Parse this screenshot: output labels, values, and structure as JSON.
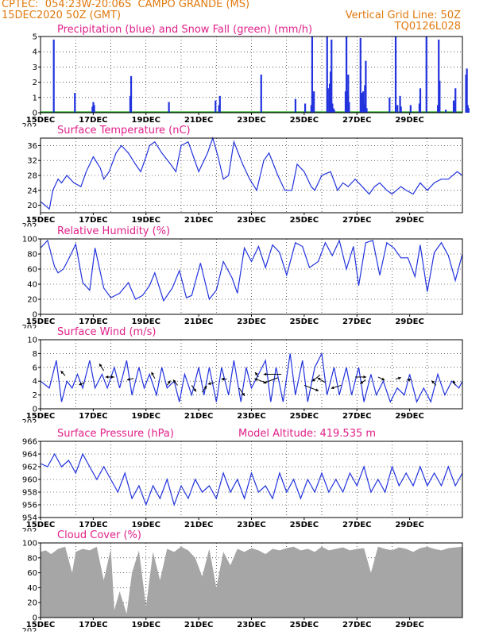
{
  "header": {
    "line1_left": "CPTEC:  054:23W-20:06S  CAMPO GRANDE (MS)",
    "line2_left": "15DEC2020 50Z (GMT)",
    "line2_right": "Vertical Grid Line: 50Z",
    "line3_right": "TQ0126L028",
    "model_altitude": "Model Altitude: 419.535 m"
  },
  "x_axis": {
    "labels": [
      "15DEC",
      "17DEC",
      "19DEC",
      "21DEC",
      "23DEC",
      "25DEC",
      "27DEC",
      "29DEC"
    ],
    "year_fragment": "202"
  },
  "colors": {
    "title": "#e0208a",
    "header": "#e07a10",
    "line": "#2233dd",
    "bar": "#2233dd",
    "snow": "#10a010",
    "cloud": "#a6a6a6"
  },
  "chart_data": [
    {
      "type": "bar",
      "title": "Precipitation (blue) and Snow Fall (green) (mm/h)",
      "ylim": [
        0,
        5
      ],
      "yticks": [
        "0",
        "1",
        "2",
        "3",
        "4",
        "5"
      ],
      "x": [
        0.75,
        1.95,
        2.95,
        3.0,
        3.05,
        5.1,
        5.15,
        7.3,
        9.95,
        10.15,
        10.2,
        12.55,
        14.5,
        15.05,
        15.4,
        15.45,
        15.5,
        15.55,
        16.3,
        16.35,
        16.45,
        16.5,
        16.55,
        16.6,
        16.65,
        16.7,
        17.35,
        17.4,
        17.45,
        17.5,
        17.55,
        18.2,
        18.25,
        18.3,
        18.35,
        18.4,
        18.45,
        18.5,
        18.55,
        19.85,
        20.2,
        20.3,
        20.45,
        20.5,
        21.05,
        21.55,
        21.6,
        21.95,
        22.6,
        22.65,
        22.7,
        23.05,
        23.5,
        23.55,
        23.6,
        24.2,
        24.25,
        24.3,
        24.35
      ],
      "values": [
        4.8,
        1.3,
        0.4,
        0.7,
        0.5,
        1.1,
        2.4,
        0.7,
        0.8,
        0.5,
        1.1,
        2.5,
        0.9,
        0.6,
        0.5,
        5,
        1.2,
        1.4,
        5,
        1.6,
        1.9,
        2.7,
        4.8,
        0.6,
        0.3,
        0.2,
        1.4,
        5,
        1.4,
        2.5,
        0.7,
        4.9,
        1.3,
        0.5,
        1.4,
        0.6,
        1.8,
        3.4,
        0.3,
        1.0,
        5,
        0.5,
        1.1,
        0.4,
        0.5,
        0.6,
        1.6,
        5,
        0.5,
        4.8,
        2.1,
        0.2,
        0.8,
        0.6,
        1.6,
        2.5,
        2.9,
        0.5,
        0.3
      ],
      "snow": [
        0
      ]
    },
    {
      "type": "line",
      "title": "Surface Temperature (nC)",
      "ylim": [
        18,
        38
      ],
      "yticks": [
        "20",
        "24",
        "28",
        "32",
        "36"
      ],
      "x": [
        0,
        0.5,
        0.7,
        1.0,
        1.2,
        1.5,
        1.9,
        2.3,
        2.6,
        3.0,
        3.4,
        3.6,
        3.9,
        4.3,
        4.6,
        5.0,
        5.4,
        5.7,
        6.0,
        6.2,
        6.5,
        6.9,
        7.4,
        7.7,
        8.0,
        8.4,
        8.7,
        9.0,
        9.5,
        9.8,
        10.1,
        10.4,
        10.7,
        11.0,
        11.5,
        11.9,
        12.3,
        12.7,
        13.0,
        13.5,
        13.9,
        14.3,
        14.6,
        15.0,
        15.4,
        15.6,
        16.0,
        16.5,
        16.9,
        17.2,
        17.5,
        17.9,
        18.3,
        18.7,
        19.0,
        19.3,
        19.7,
        20.0,
        20.5,
        20.8,
        21.2,
        21.6,
        22.0,
        22.4,
        22.8,
        23.2,
        23.7,
        24.0
      ],
      "values": [
        21,
        19,
        24,
        27,
        26,
        28,
        26,
        25,
        29,
        33,
        30,
        27,
        29,
        34,
        36,
        34,
        31,
        29,
        33,
        36,
        37,
        34,
        31,
        29,
        36,
        37,
        33,
        29,
        34,
        38,
        33,
        27,
        28,
        37,
        31,
        27,
        24,
        32,
        34,
        28,
        24,
        24,
        31,
        29,
        25,
        24,
        28,
        29,
        24,
        26,
        25,
        27,
        25,
        23,
        25,
        26,
        24,
        23,
        25,
        24,
        23,
        26,
        24,
        26,
        27,
        27,
        29,
        28
      ]
    },
    {
      "type": "line",
      "title": "Relative Humidity (%)",
      "ylim": [
        0,
        100
      ],
      "yticks": [
        "0",
        "20",
        "40",
        "60",
        "80",
        "100"
      ],
      "x": [
        0,
        0.4,
        0.8,
        1.0,
        1.3,
        1.7,
        2.0,
        2.4,
        2.8,
        3.1,
        3.6,
        4.0,
        4.5,
        5.0,
        5.4,
        5.8,
        6.2,
        6.5,
        7.0,
        7.5,
        7.9,
        8.3,
        8.6,
        9.1,
        9.6,
        10.0,
        10.4,
        10.9,
        11.2,
        11.6,
        12.0,
        12.4,
        12.8,
        13.2,
        13.6,
        14.0,
        14.5,
        14.9,
        15.3,
        15.8,
        16.2,
        16.6,
        17.0,
        17.4,
        17.8,
        18.1,
        18.5,
        18.9,
        19.3,
        19.7,
        20.1,
        20.5,
        20.9,
        21.3,
        21.6,
        22.0,
        22.4,
        22.8,
        23.2,
        23.6,
        24.0
      ],
      "values": [
        88,
        98,
        63,
        55,
        60,
        78,
        93,
        42,
        32,
        88,
        35,
        22,
        28,
        42,
        20,
        25,
        38,
        55,
        18,
        35,
        58,
        22,
        25,
        68,
        20,
        32,
        70,
        48,
        28,
        88,
        70,
        90,
        62,
        92,
        82,
        52,
        95,
        90,
        62,
        70,
        95,
        78,
        98,
        60,
        90,
        38,
        95,
        98,
        52,
        95,
        88,
        75,
        75,
        50,
        92,
        30,
        82,
        95,
        78,
        45,
        80
      ]
    },
    {
      "type": "line",
      "title": "Surface Wind (m/s)",
      "ylim": [
        0,
        10
      ],
      "yticks": [
        "0",
        "2",
        "4",
        "6",
        "8",
        "10"
      ],
      "x": [
        0,
        0.5,
        0.9,
        1.2,
        1.5,
        1.8,
        2.1,
        2.4,
        2.8,
        3.1,
        3.5,
        3.8,
        4.2,
        4.5,
        4.9,
        5.2,
        5.6,
        5.9,
        6.2,
        6.6,
        6.9,
        7.2,
        7.6,
        7.9,
        8.2,
        8.6,
        9.0,
        9.3,
        9.6,
        10.0,
        10.3,
        10.7,
        11.0,
        11.4,
        11.7,
        12.0,
        12.4,
        12.8,
        13.1,
        13.4,
        13.8,
        14.2,
        14.5,
        14.9,
        15.2,
        15.6,
        16.0,
        16.3,
        16.7,
        17.0,
        17.4,
        17.7,
        18.1,
        18.4,
        18.8,
        19.1,
        19.5,
        19.9,
        20.3,
        20.7,
        21.0,
        21.4,
        21.8,
        22.2,
        22.6,
        23.0,
        23.4,
        23.8,
        24.0
      ],
      "values": [
        4,
        3,
        7,
        1,
        4,
        3,
        5,
        3,
        7,
        3,
        5,
        3,
        6,
        3,
        7,
        2,
        6,
        3,
        5,
        2,
        6,
        3,
        4,
        1,
        5,
        2,
        6,
        2,
        6,
        1,
        6,
        2,
        7,
        1,
        6,
        3,
        5,
        7,
        1,
        6,
        1,
        8,
        2,
        7,
        1,
        6,
        8,
        2,
        6,
        2,
        6,
        2,
        6,
        1,
        5,
        2,
        4,
        1,
        3,
        2,
        5,
        1,
        3,
        1,
        5,
        2,
        4,
        3,
        4
      ]
    },
    {
      "type": "line",
      "title": "Surface Pressure (hPa)",
      "ylim": [
        954,
        966
      ],
      "yticks": [
        "954",
        "956",
        "958",
        "960",
        "962",
        "964",
        "966"
      ],
      "x": [
        0,
        0.4,
        0.8,
        1.2,
        1.6,
        2.0,
        2.4,
        2.8,
        3.2,
        3.6,
        4.0,
        4.4,
        4.8,
        5.2,
        5.6,
        6.0,
        6.4,
        6.8,
        7.2,
        7.6,
        8.0,
        8.4,
        8.8,
        9.2,
        9.6,
        10.0,
        10.4,
        10.8,
        11.2,
        11.6,
        12.0,
        12.4,
        12.8,
        13.2,
        13.6,
        14.0,
        14.4,
        14.8,
        15.2,
        15.6,
        16.0,
        16.4,
        16.8,
        17.2,
        17.6,
        18.0,
        18.4,
        18.8,
        19.2,
        19.6,
        20.0,
        20.4,
        20.8,
        21.2,
        21.6,
        22.0,
        22.4,
        22.8,
        23.2,
        23.6,
        24.0
      ],
      "values": [
        962.5,
        962,
        964,
        962,
        963,
        961,
        964,
        962,
        960,
        962,
        960,
        958,
        961,
        957,
        959,
        956,
        959,
        957,
        960,
        956,
        959,
        957,
        960,
        958,
        959,
        957,
        961,
        958,
        960,
        957,
        961,
        958,
        959,
        957,
        961,
        958,
        960,
        957,
        960,
        958,
        961,
        958,
        960,
        958,
        961,
        959,
        962,
        958,
        960,
        958,
        962,
        959,
        961,
        959,
        962,
        959,
        961,
        959,
        962,
        959,
        961
      ]
    },
    {
      "type": "area",
      "title": "Cloud Cover (%)",
      "ylim": [
        0,
        100
      ],
      "yticks": [
        "0",
        "20",
        "40",
        "60",
        "80",
        "100"
      ],
      "x": [
        0,
        0.3,
        0.6,
        1.0,
        1.4,
        1.8,
        2.0,
        2.4,
        2.8,
        3.2,
        3.6,
        4.0,
        4.2,
        4.5,
        4.9,
        5.2,
        5.6,
        6.0,
        6.4,
        6.8,
        7.2,
        7.6,
        8.0,
        8.4,
        8.8,
        9.2,
        9.6,
        10.0,
        10.4,
        10.8,
        11.2,
        11.6,
        12.0,
        12.4,
        12.8,
        13.2,
        13.6,
        14.0,
        14.4,
        14.8,
        15.2,
        15.6,
        16.0,
        16.4,
        16.8,
        17.2,
        17.6,
        18.0,
        18.4,
        18.8,
        19.2,
        19.6,
        20.0,
        20.4,
        20.8,
        21.2,
        21.6,
        22.0,
        22.4,
        22.8,
        23.2,
        23.6,
        24.0
      ],
      "values": [
        88,
        90,
        85,
        92,
        95,
        60,
        88,
        92,
        90,
        95,
        50,
        92,
        10,
        35,
        5,
        60,
        90,
        15,
        88,
        50,
        92,
        88,
        95,
        90,
        80,
        55,
        92,
        40,
        88,
        70,
        92,
        88,
        93,
        90,
        85,
        92,
        90,
        93,
        95,
        90,
        92,
        88,
        95,
        90,
        92,
        94,
        90,
        92,
        93,
        60,
        95,
        92,
        90,
        94,
        92,
        88,
        93,
        95,
        92,
        90,
        93,
        94,
        95
      ]
    }
  ]
}
